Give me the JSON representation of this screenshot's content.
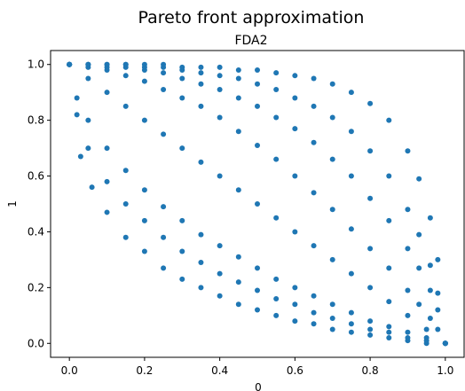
{
  "chart_data": {
    "type": "scatter",
    "title": "Pareto front approximation",
    "subtitle": "FDA2",
    "xlabel": "0",
    "ylabel": "1",
    "xlim": [
      -0.05,
      1.05
    ],
    "ylim": [
      -0.05,
      1.05
    ],
    "xticks": [
      "0.0",
      "0.2",
      "0.4",
      "0.6",
      "0.8",
      "1.0"
    ],
    "yticks": [
      "0.0",
      "0.2",
      "0.4",
      "0.6",
      "0.8",
      "1.0"
    ],
    "grid": false,
    "legend": "none",
    "marker_color": "#1f77b4",
    "series": [
      {
        "x": [
          0.0,
          0.03,
          0.06,
          0.1,
          0.15,
          0.2,
          0.25,
          0.3,
          0.35,
          0.4,
          0.45,
          0.5,
          0.55,
          0.6,
          0.65,
          0.7,
          0.75,
          0.8,
          0.85,
          0.9,
          0.95,
          1.0
        ],
        "y": [
          1.0,
          0.67,
          0.56,
          0.47,
          0.38,
          0.33,
          0.27,
          0.23,
          0.2,
          0.17,
          0.14,
          0.12,
          0.1,
          0.08,
          0.07,
          0.05,
          0.04,
          0.03,
          0.02,
          0.01,
          0.0,
          0.0
        ]
      },
      {
        "x": [
          0.0,
          0.02,
          0.05,
          0.1,
          0.15,
          0.2,
          0.25,
          0.3,
          0.35,
          0.4,
          0.45,
          0.5,
          0.55,
          0.6,
          0.65,
          0.7,
          0.75,
          0.8,
          0.85,
          0.9,
          0.95,
          1.0
        ],
        "y": [
          1.0,
          0.82,
          0.7,
          0.58,
          0.5,
          0.44,
          0.38,
          0.33,
          0.29,
          0.25,
          0.22,
          0.19,
          0.16,
          0.14,
          0.11,
          0.09,
          0.07,
          0.05,
          0.04,
          0.02,
          0.01,
          0.0
        ]
      },
      {
        "x": [
          0.0,
          0.02,
          0.05,
          0.1,
          0.15,
          0.2,
          0.25,
          0.3,
          0.35,
          0.4,
          0.45,
          0.5,
          0.55,
          0.6,
          0.65,
          0.7,
          0.75,
          0.8,
          0.85,
          0.9,
          0.95,
          1.0
        ],
        "y": [
          1.0,
          0.88,
          0.8,
          0.7,
          0.62,
          0.55,
          0.49,
          0.44,
          0.39,
          0.35,
          0.31,
          0.27,
          0.23,
          0.2,
          0.17,
          0.14,
          0.11,
          0.08,
          0.06,
          0.04,
          0.02,
          0.0
        ]
      },
      {
        "x": [
          0.0,
          0.05,
          0.1,
          0.15,
          0.2,
          0.25,
          0.3,
          0.35,
          0.4,
          0.45,
          0.5,
          0.55,
          0.6,
          0.65,
          0.7,
          0.75,
          0.8,
          0.85,
          0.9,
          0.95,
          1.0
        ],
        "y": [
          1.0,
          0.95,
          0.9,
          0.85,
          0.8,
          0.75,
          0.7,
          0.65,
          0.6,
          0.55,
          0.5,
          0.45,
          0.4,
          0.35,
          0.3,
          0.25,
          0.2,
          0.15,
          0.1,
          0.05,
          0.0
        ]
      },
      {
        "x": [
          0.0,
          0.05,
          0.1,
          0.15,
          0.2,
          0.25,
          0.3,
          0.35,
          0.4,
          0.45,
          0.5,
          0.55,
          0.6,
          0.65,
          0.7,
          0.75,
          0.8,
          0.85,
          0.9,
          0.93,
          0.96,
          0.98,
          1.0
        ],
        "y": [
          1.0,
          0.99,
          0.98,
          0.96,
          0.94,
          0.91,
          0.88,
          0.85,
          0.81,
          0.76,
          0.71,
          0.66,
          0.6,
          0.54,
          0.48,
          0.41,
          0.34,
          0.27,
          0.19,
          0.14,
          0.09,
          0.05,
          0.0
        ]
      },
      {
        "x": [
          0.0,
          0.05,
          0.1,
          0.15,
          0.2,
          0.25,
          0.3,
          0.35,
          0.4,
          0.45,
          0.5,
          0.55,
          0.6,
          0.65,
          0.7,
          0.75,
          0.8,
          0.85,
          0.9,
          0.93,
          0.96,
          0.98,
          1.0
        ],
        "y": [
          1.0,
          1.0,
          0.99,
          0.99,
          0.98,
          0.97,
          0.95,
          0.93,
          0.91,
          0.88,
          0.85,
          0.81,
          0.77,
          0.72,
          0.66,
          0.6,
          0.52,
          0.44,
          0.34,
          0.27,
          0.19,
          0.12,
          0.0
        ]
      },
      {
        "x": [
          0.0,
          0.05,
          0.1,
          0.15,
          0.2,
          0.25,
          0.3,
          0.35,
          0.4,
          0.45,
          0.5,
          0.55,
          0.6,
          0.65,
          0.7,
          0.75,
          0.8,
          0.85,
          0.9,
          0.93,
          0.96,
          0.98,
          1.0
        ],
        "y": [
          1.0,
          1.0,
          1.0,
          1.0,
          0.99,
          0.99,
          0.98,
          0.97,
          0.96,
          0.95,
          0.93,
          0.91,
          0.88,
          0.85,
          0.81,
          0.76,
          0.69,
          0.6,
          0.48,
          0.39,
          0.28,
          0.18,
          0.0
        ]
      },
      {
        "x": [
          0.0,
          0.05,
          0.1,
          0.15,
          0.2,
          0.25,
          0.3,
          0.35,
          0.4,
          0.45,
          0.5,
          0.55,
          0.6,
          0.65,
          0.7,
          0.75,
          0.8,
          0.85,
          0.9,
          0.93,
          0.96,
          0.98,
          1.0
        ],
        "y": [
          1.0,
          1.0,
          1.0,
          1.0,
          1.0,
          1.0,
          0.99,
          0.99,
          0.99,
          0.98,
          0.98,
          0.97,
          0.96,
          0.95,
          0.93,
          0.9,
          0.86,
          0.8,
          0.69,
          0.59,
          0.45,
          0.3,
          0.0
        ]
      }
    ]
  }
}
